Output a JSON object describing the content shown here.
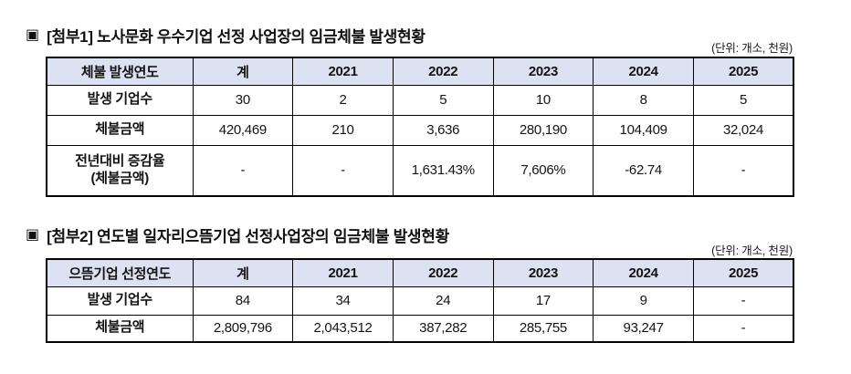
{
  "colors": {
    "header_bg": "#dce2f1",
    "border": "#000000",
    "text": "#141414",
    "page_bg": "#ffffff"
  },
  "tables": [
    {
      "bullet": "▣",
      "title": "[첨부1] 노사문화 우수기업 선정 사업장의 임금체불 발생현황",
      "unit_note": "(단위: 개소, 천원)",
      "columns": [
        "체불 발생연도",
        "계",
        "2021",
        "2022",
        "2023",
        "2024",
        "2025"
      ],
      "rows": [
        {
          "label": "발생 기업수",
          "values": [
            "30",
            "2",
            "5",
            "10",
            "8",
            "5"
          ]
        },
        {
          "label": "체불금액",
          "values": [
            "420,469",
            "210",
            "3,636",
            "280,190",
            "104,409",
            "32,024"
          ]
        },
        {
          "label": "전년대비 증감율\n(체불금액)",
          "values": [
            "-",
            "-",
            "1,631.43%",
            "7,606%",
            "-62.74",
            "-"
          ]
        }
      ]
    },
    {
      "bullet": "▣",
      "title": "[첨부2] 연도별 일자리으뜸기업 선정사업장의 임금체불 발생현황",
      "unit_note": "(단위: 개소, 천원)",
      "columns": [
        "으뜸기업 선정연도",
        "계",
        "2021",
        "2022",
        "2023",
        "2024",
        "2025"
      ],
      "rows": [
        {
          "label": "발생 기업수",
          "values": [
            "84",
            "34",
            "24",
            "17",
            "9",
            "-"
          ]
        },
        {
          "label": "체불금액",
          "values": [
            "2,809,796",
            "2,043,512",
            "387,282",
            "285,755",
            "93,247",
            "-"
          ]
        }
      ]
    }
  ]
}
